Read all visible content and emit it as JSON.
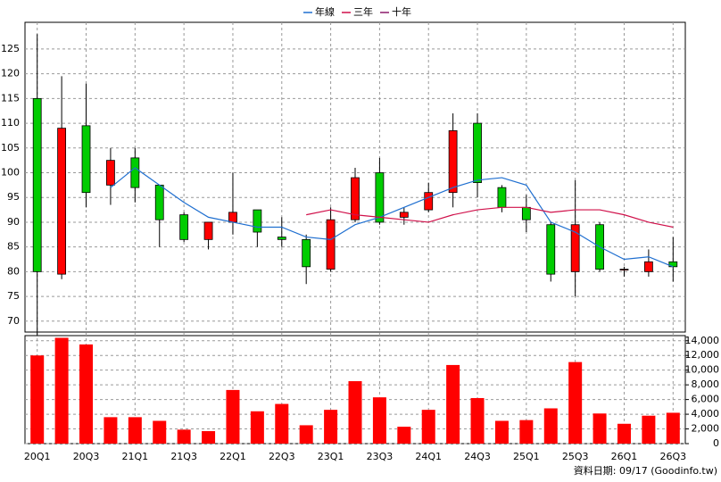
{
  "chart_data": [
    {
      "type": "candlestick",
      "categories": [
        "20Q1",
        null,
        "20Q3",
        null,
        "21Q1",
        null,
        "21Q3",
        null,
        "22Q1",
        null,
        "22Q3",
        null,
        "23Q1",
        null,
        "23Q3",
        null,
        "24Q1",
        null,
        "24Q3",
        null,
        "25Q1",
        null,
        "25Q3",
        null,
        "26Q1",
        null,
        "26Q3"
      ],
      "open": [
        115,
        79.5,
        109.5,
        97.5,
        103,
        97.5,
        91.5,
        86.5,
        90,
        92.5,
        87,
        86.5,
        80.5,
        90.5,
        100,
        91,
        92.5,
        96,
        110,
        97,
        93,
        89.5,
        80,
        89.5,
        80.5,
        80,
        82
      ],
      "high": [
        128,
        119.5,
        118,
        105,
        105,
        97.5,
        92,
        90,
        100,
        92.5,
        91,
        87.5,
        93,
        101,
        103,
        93,
        98,
        112,
        112,
        97.5,
        95.5,
        90,
        98.5,
        90,
        81,
        84.5,
        87
      ],
      "low": [
        67,
        78.5,
        93,
        93.5,
        94,
        85,
        86,
        84.5,
        87.5,
        85,
        85,
        77.5,
        80,
        90,
        89.5,
        89.5,
        92,
        93,
        95,
        92,
        88,
        78,
        75,
        80,
        79,
        79,
        78
      ],
      "close": [
        80,
        109,
        96,
        102.5,
        97,
        90.5,
        86.5,
        90,
        92,
        88,
        86.5,
        81,
        90.5,
        99,
        90,
        92,
        96,
        108.5,
        98,
        93,
        90.5,
        79.5,
        89.5,
        80.5,
        80.5,
        82,
        81
      ],
      "up_color": "#ff0000",
      "down_color": "#00cc00",
      "ylim": [
        67.8,
        130.4
      ],
      "yticks": [
        70,
        75,
        80,
        85,
        90,
        95,
        100,
        105,
        110,
        115,
        120,
        125
      ],
      "grid": true,
      "series": [
        {
          "name": "年線",
          "color": "#1f6fd0",
          "values": [
            null,
            null,
            null,
            97,
            101,
            97.5,
            94,
            91,
            90,
            89,
            89,
            87,
            86.5,
            89.5,
            91,
            93,
            95,
            97,
            98.5,
            99,
            97.5,
            90,
            88,
            85,
            82.5,
            83,
            81
          ]
        },
        {
          "name": "三年",
          "color": "#d0104a",
          "values": [
            null,
            null,
            null,
            null,
            null,
            null,
            null,
            null,
            null,
            null,
            null,
            91.5,
            92.5,
            91.5,
            91,
            90.5,
            90,
            91.5,
            92.5,
            93,
            93,
            92,
            92.5,
            92.5,
            91.5,
            90,
            89
          ]
        },
        {
          "name": "十年",
          "color": "#8b1a6b",
          "values": [
            null,
            null,
            null,
            null,
            null,
            null,
            null,
            null,
            null,
            null,
            null,
            null,
            null,
            null,
            null,
            null,
            null,
            null,
            null,
            null,
            null,
            null,
            null,
            null,
            null,
            null,
            null
          ]
        }
      ]
    },
    {
      "type": "bar",
      "color": "#ff0000",
      "values": [
        12000,
        14400,
        13500,
        3600,
        3600,
        3100,
        1900,
        1700,
        7300,
        4400,
        5400,
        2500,
        4600,
        8500,
        6300,
        2300,
        4600,
        10700,
        6200,
        3100,
        3200,
        4800,
        11100,
        4100,
        2700,
        3800,
        4200
      ],
      "ylim": [
        0,
        14700
      ],
      "yticks": [
        0,
        {
          "value": 2000,
          "label": "2,000"
        },
        {
          "value": 4000,
          "label": "4,000"
        },
        {
          "value": 6000,
          "label": "6,000"
        },
        {
          "value": 8000,
          "label": "8,000"
        },
        {
          "value": 10000,
          "label": "10,000"
        },
        {
          "value": 12000,
          "label": "12,000"
        },
        {
          "value": 14000,
          "label": "14,000"
        }
      ],
      "grid": true,
      "source": "資料日期: 09/17 (Goodinfo.tw)"
    }
  ]
}
